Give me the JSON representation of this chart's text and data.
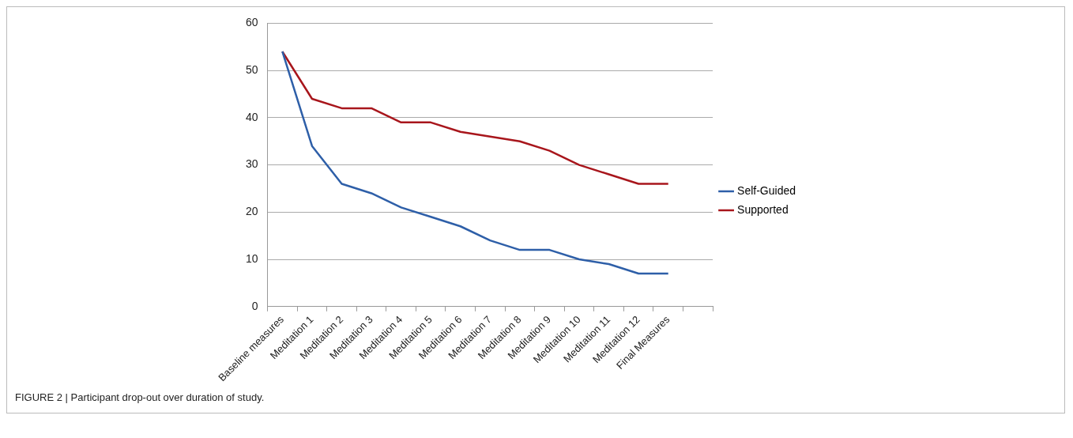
{
  "chart_data": {
    "type": "line",
    "categories": [
      "Baseline measures",
      "Meditation 1",
      "Meditation 2",
      "Meditation 3",
      "Meditation 4",
      "Meditation 5",
      "Meditation 6",
      "Meditation 7",
      "Meditation 8",
      "Meditation 9",
      "Meditation 10",
      "Meditation 11",
      "Meditation 12",
      "Final Measures",
      null
    ],
    "series": [
      {
        "name": "Self-Guided",
        "color": "#2e5fa8",
        "values": [
          54,
          34,
          26,
          24,
          21,
          19,
          17,
          14,
          12,
          12,
          10,
          9,
          7,
          7,
          null
        ]
      },
      {
        "name": "Supported",
        "color": "#a8161c",
        "values": [
          54,
          44,
          42,
          42,
          39,
          39,
          37,
          36,
          35,
          33,
          30,
          28,
          26,
          26,
          null
        ]
      }
    ],
    "ylim": [
      0,
      60
    ],
    "yticks": [
      0,
      10,
      20,
      30,
      40,
      50,
      60
    ],
    "grid": "y",
    "legend": "right",
    "marker": "none",
    "line_style": "solid",
    "annotations": [
      "FIGURE 2 | Participant drop-out over duration of study."
    ]
  }
}
